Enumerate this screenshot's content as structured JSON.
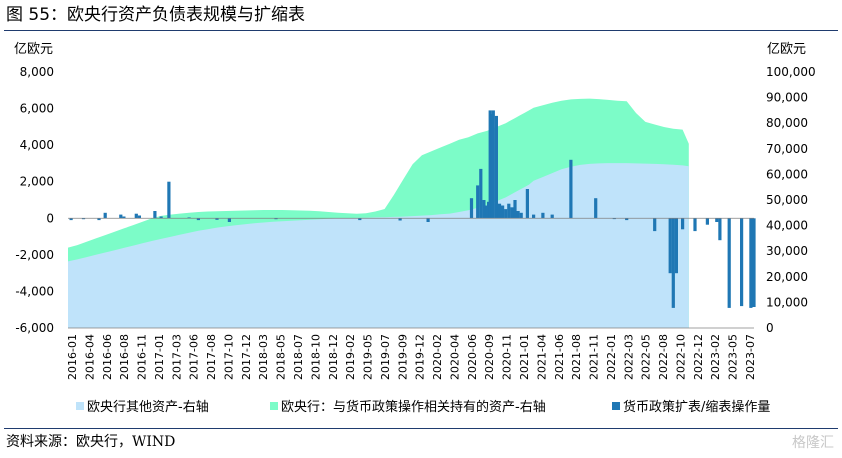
{
  "header": {
    "title": "图 55：欧央行资产负债表规模与扩缩表"
  },
  "footer": {
    "source": "资料来源：欧央行，WIND",
    "watermark": "格隆汇"
  },
  "chart_data": {
    "type": "bar",
    "title": "",
    "left_axis": {
      "unit": "亿欧元",
      "ylim": [
        -6000,
        8000
      ],
      "ticks": [
        "8,000",
        "6,000",
        "4,000",
        "2,000",
        "0",
        "-2,000",
        "-4,000",
        "-6,000"
      ]
    },
    "right_axis": {
      "unit": "亿欧元",
      "ylim": [
        0,
        100000
      ],
      "ticks": [
        "100,000",
        "90,000",
        "80,000",
        "70,000",
        "60,000",
        "50,000",
        "40,000",
        "30,000",
        "20,000",
        "10,000",
        "0"
      ]
    },
    "x_tick_labels": [
      "2016-01",
      "2016-04",
      "2016-06",
      "2016-08",
      "2016-11",
      "2017-01",
      "2017-03",
      "2017-06",
      "2017-08",
      "2017-10",
      "2017-12",
      "2018-03",
      "2018-05",
      "2018-07",
      "2018-10",
      "2018-12",
      "2019-02",
      "2019-05",
      "2019-07",
      "2019-09",
      "2019-12",
      "2020-02",
      "2020-04",
      "2020-06",
      "2020-09",
      "2020-11",
      "2021-01",
      "2021-04",
      "2021-06",
      "2021-08",
      "2021-11",
      "2022-01",
      "2022-03",
      "2022-05",
      "2022-08",
      "2022-10",
      "2022-12",
      "2023-02",
      "2023-05",
      "2023-07"
    ],
    "legend_position": "bottom",
    "series": [
      {
        "name": "欧央行其他资产-右轴",
        "type": "area",
        "axis": "right",
        "color": "#bfe3fa",
        "x": [
          0,
          6,
          12,
          18,
          24,
          30,
          36,
          42,
          48,
          54,
          60,
          66,
          72,
          78,
          84,
          90,
          96,
          102,
          108,
          114,
          120,
          126,
          132,
          138,
          144,
          150,
          156,
          162,
          168,
          174,
          180,
          186,
          192,
          198,
          204,
          210,
          216,
          222,
          228,
          234,
          240,
          246,
          252,
          258,
          264,
          270,
          276,
          282,
          285,
          288,
          291,
          294,
          297,
          300,
          306,
          312,
          318,
          324,
          330,
          336,
          342,
          348,
          354,
          360,
          366,
          372,
          378,
          384,
          390,
          396,
          400
        ],
        "values": [
          26000,
          26800,
          27700,
          28600,
          29500,
          30400,
          31300,
          32200,
          33100,
          34000,
          34800,
          35600,
          36400,
          37200,
          38000,
          38600,
          39200,
          39700,
          40100,
          40500,
          40900,
          41200,
          41500,
          41700,
          41900,
          42100,
          42300,
          42500,
          42700,
          42800,
          42900,
          43000,
          43100,
          43200,
          43300,
          43400,
          43500,
          43700,
          43900,
          44100,
          44400,
          44700,
          45300,
          46000,
          47000,
          48000,
          49500,
          51000,
          52000,
          53000,
          54000,
          55000,
          56000,
          57500,
          59000,
          60500,
          62000,
          63000,
          63700,
          64100,
          64300,
          64400,
          64400,
          64400,
          64300,
          64200,
          64100,
          64000,
          63800,
          63500,
          63200
        ]
      },
      {
        "name": "欧央行：与货币政策操作相关持有的资产-右轴",
        "type": "area",
        "axis": "right",
        "color": "#7cfcc8",
        "x": [
          0,
          6,
          12,
          18,
          24,
          30,
          36,
          42,
          48,
          54,
          60,
          66,
          72,
          78,
          84,
          90,
          96,
          102,
          108,
          114,
          120,
          126,
          132,
          138,
          144,
          150,
          156,
          162,
          168,
          174,
          180,
          186,
          192,
          198,
          204,
          210,
          216,
          222,
          228,
          234,
          240,
          246,
          252,
          258,
          264,
          270,
          276,
          282,
          285,
          288,
          291,
          294,
          297,
          300,
          306,
          312,
          318,
          324,
          330,
          336,
          342,
          348,
          354,
          360,
          366,
          372,
          378,
          384,
          390,
          396,
          400
        ],
        "values": [
          31400,
          32400,
          33700,
          35000,
          36300,
          37600,
          38900,
          40200,
          41500,
          42800,
          43800,
          44300,
          44700,
          45000,
          45300,
          45500,
          45600,
          45700,
          45800,
          45900,
          46000,
          46100,
          46100,
          46100,
          46000,
          45900,
          45800,
          45600,
          45300,
          45000,
          44800,
          44600,
          44800,
          45500,
          46500,
          52000,
          58000,
          64000,
          67500,
          69000,
          70500,
          72000,
          73500,
          74500,
          76000,
          77000,
          78500,
          80000,
          81000,
          82000,
          83000,
          84000,
          85000,
          86000,
          87000,
          88000,
          88800,
          89300,
          89500,
          89600,
          89400,
          89100,
          88800,
          88600,
          84000,
          80500,
          79500,
          78500,
          77800,
          77500,
          72000
        ]
      },
      {
        "name": "货币政策扩表/缩表操作量",
        "type": "bar",
        "axis": "left",
        "color": "#1f77b4",
        "x": [
          2,
          10,
          20,
          24,
          34,
          36,
          44,
          46,
          56,
          60,
          65,
          78,
          84,
          96,
          104,
          134,
          188,
          214,
          232,
          260,
          264,
          266,
          268,
          270,
          271,
          272,
          273,
          274,
          276,
          278,
          280,
          282,
          284,
          286,
          288,
          290,
          292,
          296,
          300,
          306,
          312,
          324,
          340,
          352,
          360,
          378,
          388,
          390,
          392,
          396,
          404,
          412,
          418,
          420,
          426,
          434,
          440,
          442
        ],
        "values": [
          -100,
          -50,
          -100,
          300,
          200,
          100,
          250,
          150,
          400,
          100,
          2000,
          50,
          -100,
          -80,
          -200,
          -50,
          -100,
          -120,
          -200,
          1100,
          1800,
          2700,
          1000,
          700,
          900,
          5900,
          5700,
          5900,
          5600,
          800,
          700,
          500,
          800,
          600,
          1000,
          400,
          300,
          1600,
          200,
          300,
          200,
          3200,
          1100,
          -40,
          -100,
          -700,
          -3000,
          -4900,
          -3000,
          -600,
          -700,
          -350,
          -200,
          -1200,
          -4900,
          -4800,
          -4900,
          -4850
        ]
      }
    ]
  }
}
